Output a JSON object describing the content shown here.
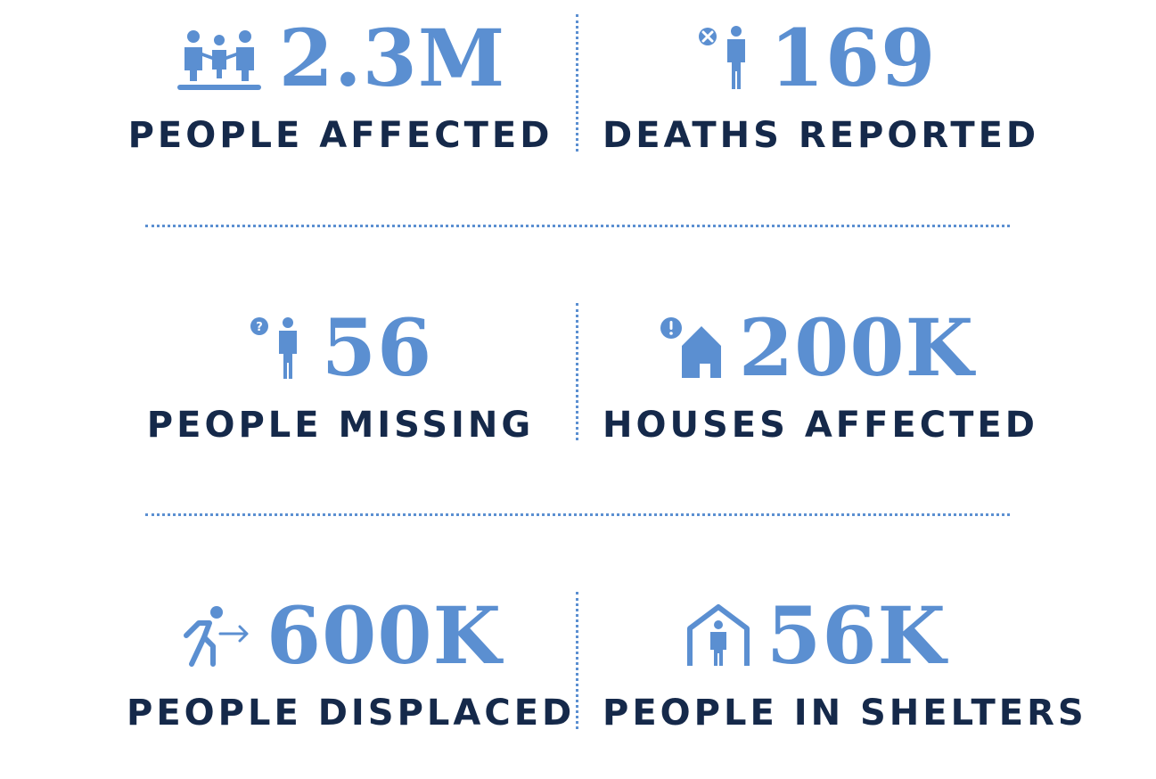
{
  "accent_color": "#5b8fd1",
  "label_color": "#15294a",
  "stats": [
    {
      "value": "2.3M",
      "label": "PEOPLE AFFECTED",
      "icon": "people-group-icon"
    },
    {
      "value": "169",
      "label": "DEATHS REPORTED",
      "icon": "person-cross-icon"
    },
    {
      "value": "56",
      "label": "PEOPLE MISSING",
      "icon": "person-question-icon"
    },
    {
      "value": "200K",
      "label": "HOUSES AFFECTED",
      "icon": "house-alert-icon"
    },
    {
      "value": "600K",
      "label": "PEOPLE DISPLACED",
      "icon": "person-running-arrow-icon"
    },
    {
      "value": "56K",
      "label": "PEOPLE IN SHELTERS",
      "icon": "person-shelter-icon"
    }
  ]
}
